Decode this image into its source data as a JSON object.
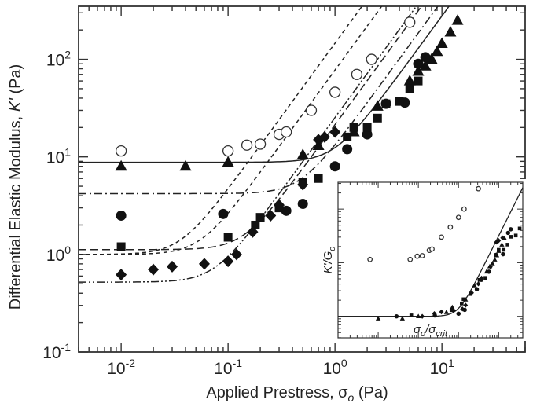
{
  "chart_data": [
    {
      "type": "scatter",
      "xlabel": "Applied Prestress, σ",
      "xlabel_sub": "o",
      "xlabel_unit": " (Pa)",
      "ylabel": "Differential Elastic Modulus, ",
      "ylabel_sym": "K'",
      "ylabel_unit": " (Pa)",
      "xscale": "log",
      "yscale": "log",
      "xlim": [
        0.004,
        60
      ],
      "ylim": [
        0.1,
        350
      ],
      "x_ticks": [
        {
          "v": 0.01,
          "m": "10",
          "e": "-2"
        },
        {
          "v": 0.1,
          "m": "10",
          "e": "-1"
        },
        {
          "v": 1,
          "m": "10",
          "e": "0"
        },
        {
          "v": 10,
          "m": "10",
          "e": "1"
        }
      ],
      "y_ticks": [
        {
          "v": 0.1,
          "m": "10",
          "e": "-1"
        },
        {
          "v": 1,
          "m": "10",
          "e": "0"
        },
        {
          "v": 10,
          "m": "10",
          "e": "1"
        },
        {
          "v": 100,
          "m": "10",
          "e": "2"
        }
      ],
      "series": [
        {
          "marker": "open-circle",
          "points": [
            [
              0.01,
              11.5
            ],
            [
              0.1,
              11.5
            ],
            [
              0.15,
              13.2
            ],
            [
              0.2,
              13.5
            ],
            [
              0.3,
              17
            ],
            [
              0.35,
              18
            ],
            [
              0.6,
              30
            ],
            [
              1,
              46
            ],
            [
              1.6,
              70
            ],
            [
              2.2,
              100
            ],
            [
              5,
              240
            ]
          ]
        },
        {
          "marker": "triangle",
          "points": [
            [
              0.01,
              8
            ],
            [
              0.04,
              8
            ],
            [
              0.1,
              8.8
            ],
            [
              0.5,
              10.5
            ],
            [
              0.7,
              13
            ],
            [
              1.5,
              18
            ],
            [
              2.5,
              33
            ],
            [
              5,
              60
            ],
            [
              6,
              75
            ],
            [
              7,
              85
            ],
            [
              8,
              100
            ],
            [
              9,
              120
            ],
            [
              10,
              145
            ],
            [
              12,
              190
            ],
            [
              14,
              250
            ]
          ]
        },
        {
          "marker": "circle",
          "points": [
            [
              0.01,
              2.5
            ],
            [
              0.09,
              2.6
            ],
            [
              0.35,
              2.8
            ],
            [
              0.5,
              3.3
            ],
            [
              1,
              8
            ],
            [
              1.3,
              12
            ],
            [
              2,
              17
            ],
            [
              3,
              35
            ],
            [
              4.5,
              36
            ],
            [
              6,
              90
            ],
            [
              7,
              105
            ]
          ]
        },
        {
          "marker": "square",
          "points": [
            [
              0.01,
              1.2
            ],
            [
              0.1,
              1.5
            ],
            [
              0.18,
              2.0
            ],
            [
              0.2,
              2.4
            ],
            [
              0.3,
              3.0
            ],
            [
              0.5,
              5.5
            ],
            [
              0.7,
              6
            ],
            [
              1.3,
              16
            ],
            [
              1.5,
              20
            ],
            [
              2,
              20
            ],
            [
              2.5,
              25
            ],
            [
              3,
              35
            ],
            [
              4,
              37
            ],
            [
              5,
              50
            ],
            [
              6,
              60
            ]
          ]
        },
        {
          "marker": "diamond",
          "points": [
            [
              0.01,
              0.62
            ],
            [
              0.02,
              0.7
            ],
            [
              0.03,
              0.75
            ],
            [
              0.06,
              0.8
            ],
            [
              0.1,
              0.85
            ],
            [
              0.12,
              1.0
            ],
            [
              0.17,
              1.7
            ],
            [
              0.25,
              2.5
            ],
            [
              0.3,
              3.2
            ],
            [
              0.5,
              5.2
            ],
            [
              0.7,
              15
            ],
            [
              0.8,
              16
            ],
            [
              1,
              18
            ]
          ]
        }
      ],
      "lines": [
        {
          "style": "solid",
          "k0": 8.8,
          "sc": 1.0
        },
        {
          "style": "dashdot",
          "k0": 4.2,
          "sc": 0.48
        },
        {
          "style": "longdash",
          "k0": 1.12,
          "sc": 0.14
        },
        {
          "style": "dashdotdot",
          "k0": 0.52,
          "sc": 0.075
        },
        {
          "style": "shortdash",
          "k0": 1.0,
          "sc": 0.055
        },
        {
          "style": "shortdash",
          "k0": 1.0,
          "sc": 0.036
        }
      ]
    },
    {
      "type": "scatter",
      "inset": true,
      "xlabel": "σ",
      "xlabel_sub": "o",
      "xlabel_den": "/σ",
      "xlabel_den_sub": "crit",
      "ylabel": "K'/G",
      "ylabel_sub": "o",
      "xscale": "log",
      "yscale": "log"
    }
  ]
}
